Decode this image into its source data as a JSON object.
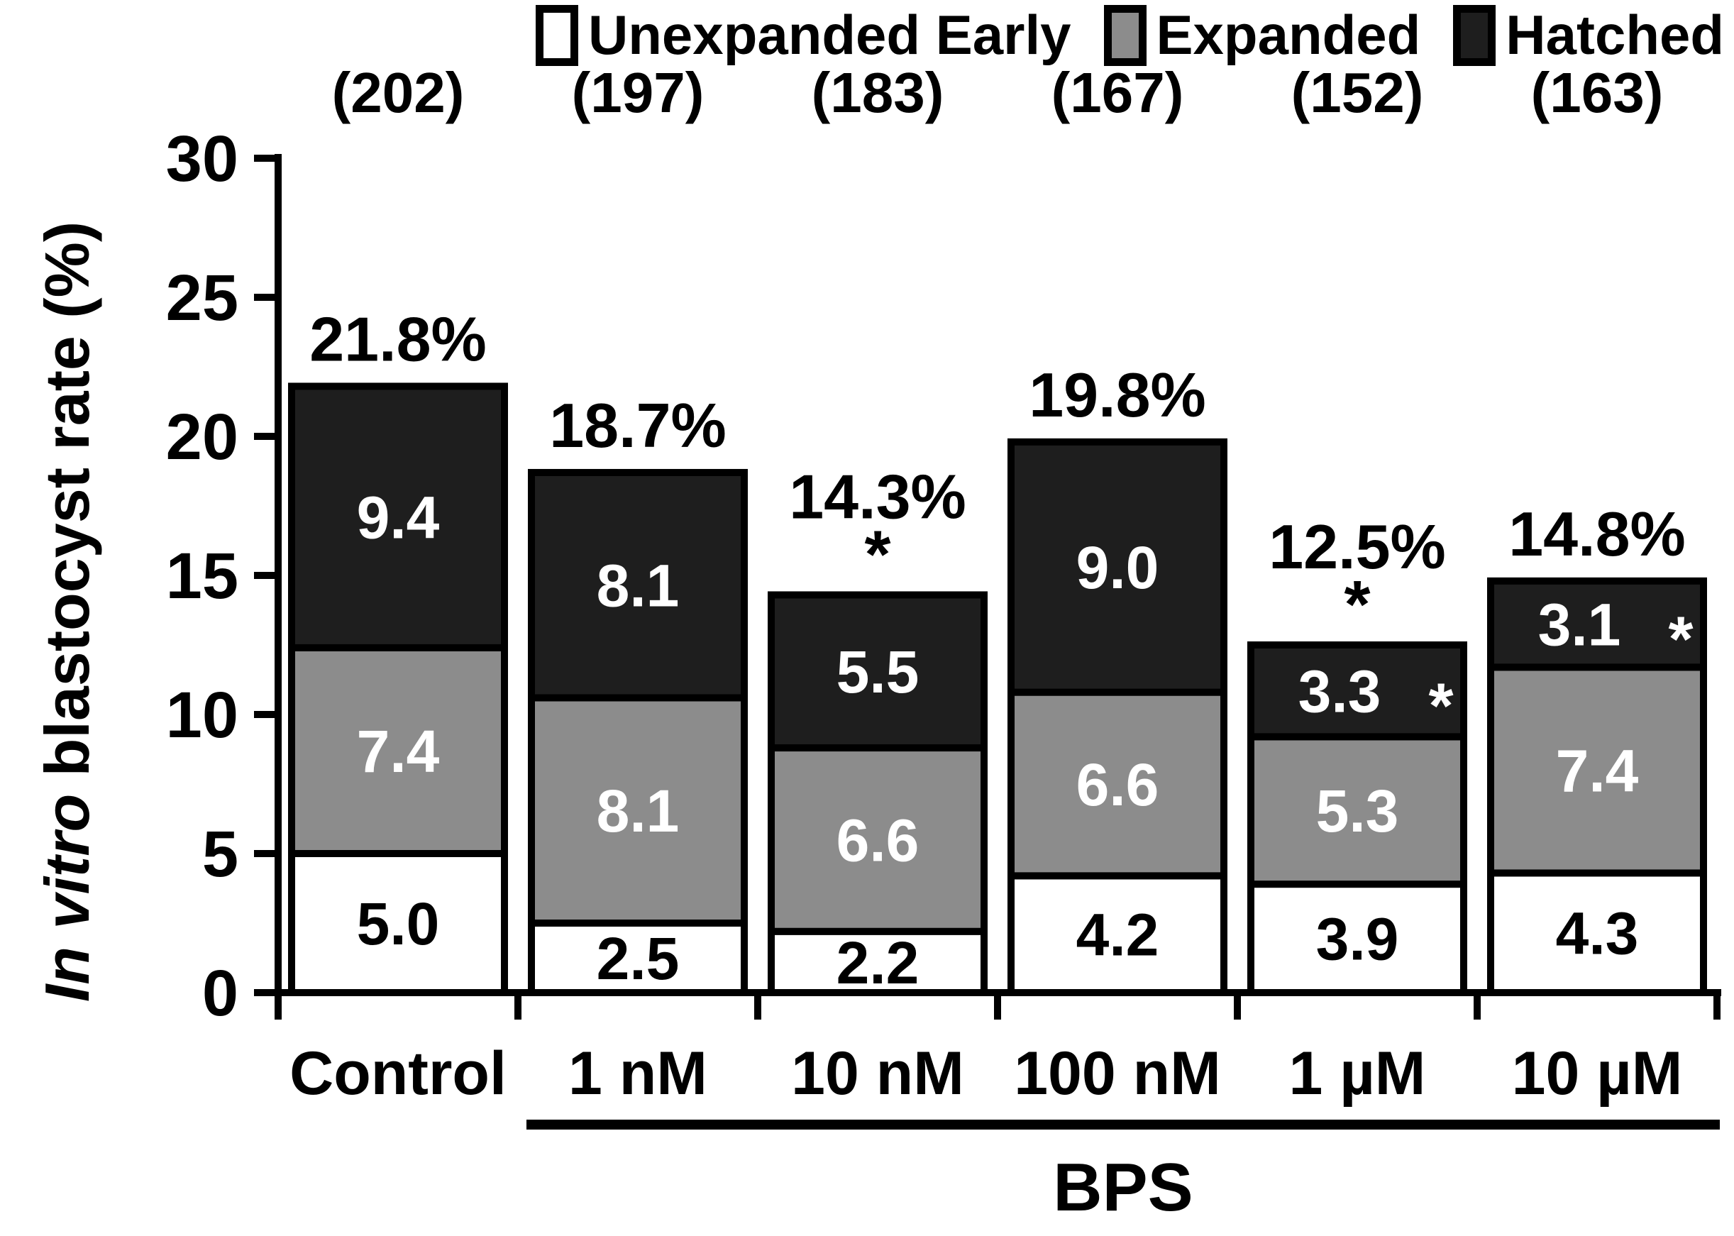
{
  "chart_data": {
    "type": "bar",
    "subtype": "stacked-vertical",
    "background_color": "#ffffff",
    "axis_color": "#000000",
    "bar_border_color": "#000000",
    "ylabel": {
      "italic": "In vitro",
      "rest": " blastocyst rate (%)"
    },
    "xlabel": "",
    "ylim": [
      0,
      30
    ],
    "yticks": [
      "0",
      "5",
      "10",
      "15",
      "20",
      "25",
      "30"
    ],
    "ytick_values": [
      0,
      5,
      10,
      15,
      20,
      25,
      30
    ],
    "grid": false,
    "legend_position": "top-right",
    "categories": [
      "Control",
      "1 nM",
      "10 nM",
      "100 nM",
      "1 µM",
      "10 µM"
    ],
    "sample_sizes": [
      "(202)",
      "(197)",
      "(183)",
      "(167)",
      "(152)",
      "(163)"
    ],
    "series": [
      {
        "name": "Unexpanded Early",
        "color": "#ffffff",
        "label_color": "#000000",
        "values": [
          5.0,
          2.5,
          2.2,
          4.2,
          3.9,
          4.3
        ],
        "value_labels": [
          "5.0",
          "2.5",
          "2.2",
          "4.2",
          "3.9",
          "4.3"
        ],
        "value_asterisks": [
          false,
          false,
          false,
          false,
          false,
          false
        ]
      },
      {
        "name": "Expanded",
        "color": "#8c8c8c",
        "label_color": "#ffffff",
        "values": [
          7.4,
          8.1,
          6.6,
          6.6,
          5.3,
          7.4
        ],
        "value_labels": [
          "7.4",
          "8.1",
          "6.6",
          "6.6",
          "5.3",
          "7.4"
        ],
        "value_asterisks": [
          false,
          false,
          false,
          false,
          false,
          false
        ]
      },
      {
        "name": "Hatched",
        "color": "#1e1e1e",
        "label_color": "#ffffff",
        "values": [
          9.4,
          8.1,
          5.5,
          9.0,
          3.3,
          3.1
        ],
        "value_labels": [
          "9.4",
          "8.1",
          "5.5",
          "9.0",
          "3.3",
          "3.1"
        ],
        "value_asterisks": [
          false,
          false,
          false,
          false,
          true,
          true
        ]
      }
    ],
    "totals": {
      "values": [
        21.8,
        18.7,
        14.3,
        19.8,
        12.5,
        14.8
      ],
      "labels": [
        "21.8%",
        "18.7%",
        "14.3%",
        "19.8%",
        "12.5%",
        "14.8%"
      ],
      "asterisks": [
        false,
        false,
        true,
        false,
        true,
        false
      ]
    },
    "significance_symbol": "*",
    "group": {
      "label": "BPS",
      "start_index": 1,
      "end_index": 5
    }
  }
}
